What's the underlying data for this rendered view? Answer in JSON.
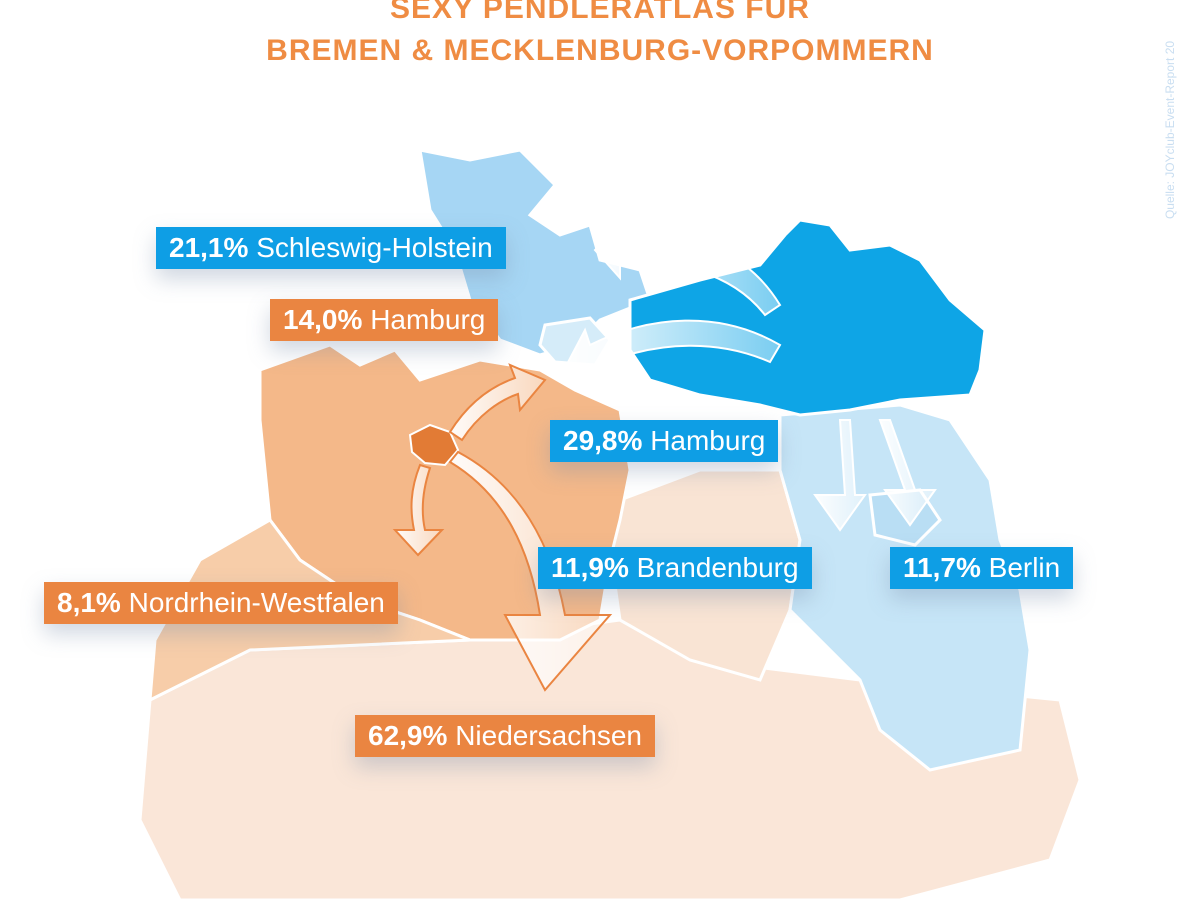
{
  "title": {
    "line1": "SEXY PENDLERATLAS FÜR",
    "line2": "BREMEN & MECKLENBURG-VORPOMMERN"
  },
  "source": "Quelle: JOYclub-Event-Report 20",
  "colors": {
    "mv": "#0ea5e6",
    "bremen": "#e27b35",
    "blue_label": "#0e9ee5",
    "orange_label": "#ea8541",
    "title": "#ef8c43"
  },
  "flows": {
    "mecklenburg_vorpommern": [
      {
        "percent": "21,1%",
        "destination": "Schleswig-Holstein"
      },
      {
        "percent": "29,8%",
        "destination": "Hamburg"
      },
      {
        "percent": "11,9%",
        "destination": "Brandenburg"
      },
      {
        "percent": "11,7%",
        "destination": "Berlin"
      }
    ],
    "bremen": [
      {
        "percent": "14,0%",
        "destination": "Hamburg"
      },
      {
        "percent": "8,1%",
        "destination": "Nordrhein-Westfalen"
      },
      {
        "percent": "62,9%",
        "destination": "Niedersachsen"
      }
    ]
  }
}
